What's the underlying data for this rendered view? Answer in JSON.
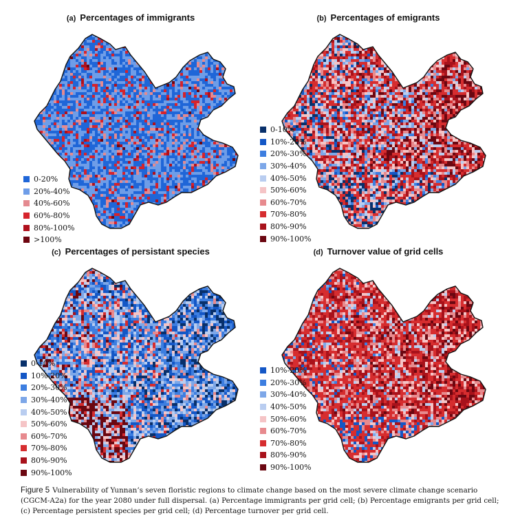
{
  "panels": [
    {
      "id": "a",
      "letter": "(a)",
      "title": "Percentages of immigrants",
      "legend": [
        {
          "label": "0-20%",
          "color": "#1f66d8"
        },
        {
          "label": "20%-40%",
          "color": "#6e9de8"
        },
        {
          "label": "40%-60%",
          "color": "#e48a90"
        },
        {
          "label": "60%-80%",
          "color": "#d6232c"
        },
        {
          "label": "80%-100%",
          "color": "#b0101c"
        },
        {
          "label": ">100%",
          "color": "#6e0510"
        }
      ],
      "palette_weights": [
        0.42,
        0.38,
        0.08,
        0.08,
        0.03,
        0.01
      ]
    },
    {
      "id": "b",
      "letter": "(b)",
      "title": "Percentages of emigrants",
      "legend": [
        {
          "label": "0-10%",
          "color": "#08306b"
        },
        {
          "label": "10%-20%",
          "color": "#1457c6"
        },
        {
          "label": "20%-30%",
          "color": "#3d7ee0"
        },
        {
          "label": "30%-40%",
          "color": "#7da7e8"
        },
        {
          "label": "40%-50%",
          "color": "#b9cdf0"
        },
        {
          "label": "50%-60%",
          "color": "#f5c4c6"
        },
        {
          "label": "60%-70%",
          "color": "#e78a8e"
        },
        {
          "label": "70%-80%",
          "color": "#d62d2f"
        },
        {
          "label": "80%-90%",
          "color": "#a8121b"
        },
        {
          "label": "90%-100%",
          "color": "#6b0711"
        }
      ],
      "palette_weights": [
        0.01,
        0.04,
        0.06,
        0.08,
        0.08,
        0.12,
        0.13,
        0.24,
        0.16,
        0.08
      ]
    },
    {
      "id": "c",
      "letter": "(c)",
      "title": "Percentages of persistant species",
      "legend": [
        {
          "label": "0-10%",
          "color": "#08306b"
        },
        {
          "label": "10%-20%",
          "color": "#1457c6"
        },
        {
          "label": "20%-30%",
          "color": "#3d7ee0"
        },
        {
          "label": "30%-40%",
          "color": "#7da7e8"
        },
        {
          "label": "40%-50%",
          "color": "#b9cdf0"
        },
        {
          "label": "50%-60%",
          "color": "#f5c4c6"
        },
        {
          "label": "60%-70%",
          "color": "#e78a8e"
        },
        {
          "label": "70%-80%",
          "color": "#d62d2f"
        },
        {
          "label": "80%-90%",
          "color": "#a8121b"
        },
        {
          "label": "90%-100%",
          "color": "#6b0711"
        }
      ],
      "palette_weights": [
        0.06,
        0.2,
        0.17,
        0.16,
        0.14,
        0.1,
        0.07,
        0.07,
        0.02,
        0.01
      ]
    },
    {
      "id": "d",
      "letter": "(d)",
      "title": "Turnover value of grid cells",
      "legend": [
        {
          "label": "10%-20%",
          "color": "#1457c6"
        },
        {
          "label": "20%-30%",
          "color": "#3d7ee0"
        },
        {
          "label": "30%-40%",
          "color": "#7da7e8"
        },
        {
          "label": "40%-50%",
          "color": "#b9cdf0"
        },
        {
          "label": "50%-60%",
          "color": "#f5c4c6"
        },
        {
          "label": "60%-70%",
          "color": "#e78a8e"
        },
        {
          "label": "70%-80%",
          "color": "#d62d2f"
        },
        {
          "label": "80%-90%",
          "color": "#a8121b"
        },
        {
          "label": "90%-100%",
          "color": "#6b0711"
        }
      ],
      "palette_weights": [
        0.01,
        0.02,
        0.04,
        0.06,
        0.1,
        0.14,
        0.36,
        0.22,
        0.05
      ]
    }
  ],
  "caption": {
    "label": "Figure 5",
    "text": "Vulnerability of Yunnan’s seven floristic regions to climate change based on the most severe climate change scenario (CGCM-A2a) for the year 2080 under full dispersal. (a) Percentage immigrants per grid cell; (b) Percentage emigrants per grid cell; (c) Percentage persistent species per grid cell; (d) Percentage turnover per grid cell."
  }
}
